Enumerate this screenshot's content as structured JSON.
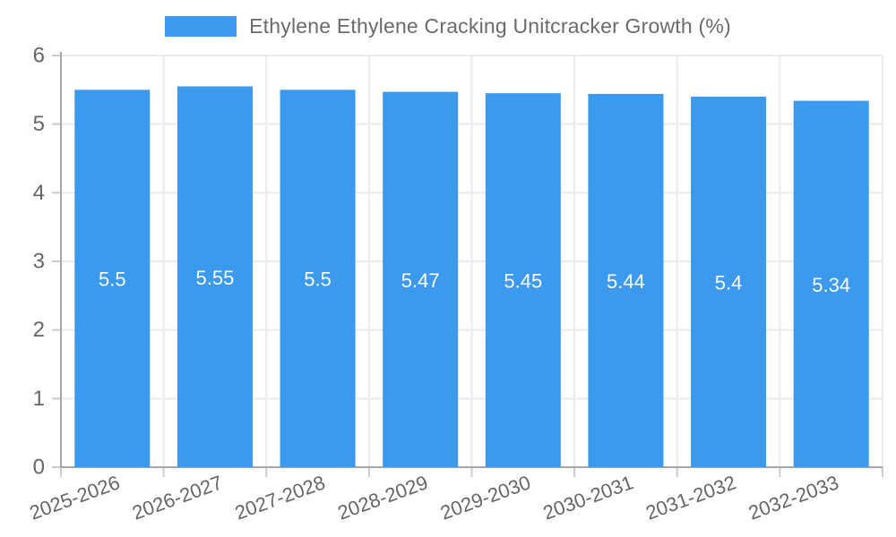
{
  "legend": {
    "label": "Ethylene Ethylene Cracking Unitcracker Growth (%)"
  },
  "chart_data": {
    "type": "bar",
    "title": "Ethylene Ethylene Cracking Unitcracker Growth (%)",
    "categories": [
      "2025-2026",
      "2026-2027",
      "2027-2028",
      "2028-2029",
      "2029-2030",
      "2030-2031",
      "2031-2032",
      "2032-2033"
    ],
    "values": [
      5.5,
      5.55,
      5.5,
      5.47,
      5.45,
      5.44,
      5.4,
      5.34
    ],
    "value_labels": [
      "5.5",
      "5.55",
      "5.5",
      "5.47",
      "5.45",
      "5.44",
      "5.4",
      "5.34"
    ],
    "xlabel": "",
    "ylabel": "",
    "ylim": [
      0,
      6
    ],
    "yticks": [
      0,
      1,
      2,
      3,
      4,
      5,
      6
    ],
    "grid": true,
    "legend_position": "top",
    "x_label_rotation_deg": -20,
    "bar_color": "#3B99EE",
    "colors": {
      "grid": "#EBEBEB",
      "axis": "#A6A6A6",
      "tick": "#CCCCCC",
      "text": "#666666",
      "bar_label": "#FFFFFF"
    }
  }
}
